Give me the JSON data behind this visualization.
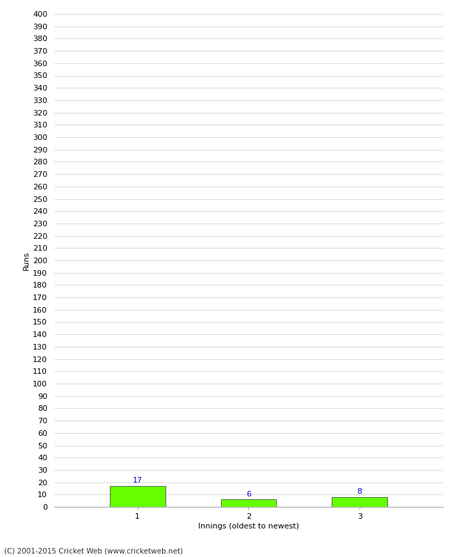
{
  "categories": [
    "1",
    "2",
    "3"
  ],
  "values": [
    17,
    6,
    8
  ],
  "bar_color": "#66ff00",
  "bar_edge_color": "#333333",
  "ylabel": "Runs",
  "xlabel": "Innings (oldest to newest)",
  "ylim": [
    0,
    400
  ],
  "ytick_step": 10,
  "label_color": "#0000cc",
  "background_color": "#ffffff",
  "grid_color": "#cccccc",
  "footer": "(C) 2001-2015 Cricket Web (www.cricketweb.net)",
  "tick_label_fontsize": 8,
  "axis_label_fontsize": 8,
  "value_label_fontsize": 8
}
